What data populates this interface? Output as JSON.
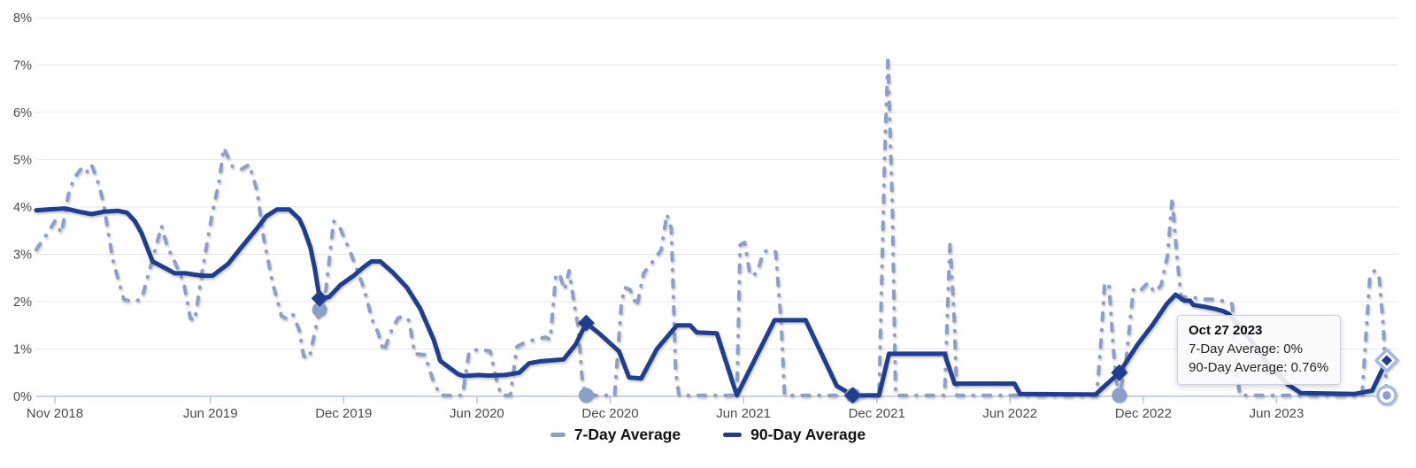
{
  "chart_data": {
    "type": "line",
    "title": "",
    "x_unit": "months_since_Nov_2018",
    "x_range": [
      -0.9,
      60.5
    ],
    "ylim": [
      0,
      8
    ],
    "grid": true,
    "legend_position": "bottom",
    "y_tick_labels": [
      "0%",
      "1%",
      "2%",
      "3%",
      "4%",
      "5%",
      "6%",
      "7%",
      "8%"
    ],
    "x_ticks": [
      {
        "m": 0,
        "label": "Nov 2018"
      },
      {
        "m": 7,
        "label": "Jun 2019"
      },
      {
        "m": 13,
        "label": "Dec 2019"
      },
      {
        "m": 19,
        "label": "Jun 2020"
      },
      {
        "m": 25,
        "label": "Dec 2020"
      },
      {
        "m": 31,
        "label": "Jun 2021"
      },
      {
        "m": 37,
        "label": "Dec 2021"
      },
      {
        "m": 43,
        "label": "Jun 2022"
      },
      {
        "m": 49,
        "label": "Dec 2022"
      },
      {
        "m": 55,
        "label": "Jun 2023"
      }
    ],
    "series": [
      {
        "name": "7-Day Average",
        "color": "#8C9FC9",
        "line_style": "dashdot",
        "marker": "circle",
        "points": [
          [
            -0.84,
            3.1
          ],
          [
            -0.4,
            3.4
          ],
          [
            0.0,
            3.7
          ],
          [
            0.3,
            3.45
          ],
          [
            0.6,
            4.25
          ],
          [
            0.85,
            4.6
          ],
          [
            1.25,
            4.85
          ],
          [
            1.45,
            4.75
          ],
          [
            1.65,
            4.9
          ],
          [
            2.0,
            4.45
          ],
          [
            2.2,
            4.05
          ],
          [
            2.6,
            2.9
          ],
          [
            3.1,
            2.05
          ],
          [
            3.5,
            2.0
          ],
          [
            3.9,
            2.05
          ],
          [
            4.4,
            2.9
          ],
          [
            4.8,
            3.6
          ],
          [
            5.1,
            3.1
          ],
          [
            5.25,
            3.0
          ],
          [
            5.8,
            2.4
          ],
          [
            6.1,
            1.65
          ],
          [
            6.3,
            1.6
          ],
          [
            6.6,
            2.55
          ],
          [
            6.8,
            3.1
          ],
          [
            7.1,
            3.9
          ],
          [
            7.4,
            4.55
          ],
          [
            7.6,
            5.25
          ],
          [
            8.0,
            4.85
          ],
          [
            8.4,
            4.8
          ],
          [
            8.75,
            4.9
          ],
          [
            9.1,
            4.35
          ],
          [
            9.4,
            3.35
          ],
          [
            9.8,
            2.4
          ],
          [
            10.2,
            1.7
          ],
          [
            10.4,
            1.65
          ],
          [
            10.7,
            1.75
          ],
          [
            11.0,
            1.4
          ],
          [
            11.2,
            0.85
          ],
          [
            11.45,
            0.8
          ],
          [
            11.92,
            1.83
          ],
          [
            12.2,
            2.25
          ],
          [
            12.55,
            3.7
          ],
          [
            12.8,
            3.6
          ],
          [
            13.3,
            3.05
          ],
          [
            13.9,
            2.3
          ],
          [
            14.3,
            1.6
          ],
          [
            14.55,
            1.35
          ],
          [
            14.8,
            0.95
          ],
          [
            15.2,
            1.45
          ],
          [
            15.45,
            1.65
          ],
          [
            15.65,
            1.7
          ],
          [
            15.95,
            1.6
          ],
          [
            16.2,
            0.9
          ],
          [
            16.65,
            0.88
          ],
          [
            17.05,
            0.3
          ],
          [
            17.35,
            0.02
          ],
          [
            18.35,
            0.02
          ],
          [
            18.65,
            0.95
          ],
          [
            19.15,
            1.0
          ],
          [
            19.6,
            0.95
          ],
          [
            19.9,
            0.3
          ],
          [
            20.1,
            0.02
          ],
          [
            20.5,
            0.02
          ],
          [
            20.8,
            1.05
          ],
          [
            21.2,
            1.15
          ],
          [
            21.6,
            1.2
          ],
          [
            22.1,
            1.25
          ],
          [
            22.3,
            1.2
          ],
          [
            22.55,
            2.55
          ],
          [
            22.7,
            2.6
          ],
          [
            22.95,
            2.25
          ],
          [
            23.15,
            2.65
          ],
          [
            23.45,
            1.75
          ],
          [
            23.55,
            1.5
          ],
          [
            23.75,
            0.3
          ],
          [
            23.92,
            0.02
          ],
          [
            25.2,
            0.02
          ],
          [
            25.5,
            1.95
          ],
          [
            25.65,
            2.3
          ],
          [
            25.9,
            2.25
          ],
          [
            26.2,
            1.9
          ],
          [
            26.5,
            2.6
          ],
          [
            27.0,
            2.9
          ],
          [
            27.3,
            3.1
          ],
          [
            27.55,
            3.85
          ],
          [
            27.75,
            3.55
          ],
          [
            27.95,
            0.5
          ],
          [
            28.1,
            0.02
          ],
          [
            30.7,
            0.02
          ],
          [
            30.85,
            3.2
          ],
          [
            31.05,
            3.25
          ],
          [
            31.3,
            2.55
          ],
          [
            31.6,
            2.6
          ],
          [
            31.9,
            3.05
          ],
          [
            32.2,
            3.1
          ],
          [
            32.45,
            3.05
          ],
          [
            32.7,
            1.5
          ],
          [
            32.85,
            0.02
          ],
          [
            37.1,
            0.02
          ],
          [
            37.35,
            5.0
          ],
          [
            37.5,
            7.15
          ],
          [
            37.7,
            4.0
          ],
          [
            37.85,
            0.02
          ],
          [
            40.05,
            0.02
          ],
          [
            40.2,
            2.0
          ],
          [
            40.3,
            3.25
          ],
          [
            40.5,
            1.5
          ],
          [
            40.6,
            0.02
          ],
          [
            46.9,
            0.02
          ],
          [
            47.1,
            1.2
          ],
          [
            47.25,
            2.35
          ],
          [
            47.45,
            2.4
          ],
          [
            47.65,
            1.0
          ],
          [
            47.78,
            0.35
          ],
          [
            47.92,
            0.02
          ],
          [
            48.2,
            0.65
          ],
          [
            48.55,
            2.25
          ],
          [
            48.8,
            2.2
          ],
          [
            49.2,
            2.4
          ],
          [
            49.5,
            2.2
          ],
          [
            49.8,
            2.35
          ],
          [
            50.1,
            3.0
          ],
          [
            50.3,
            4.2
          ],
          [
            50.5,
            3.0
          ],
          [
            50.7,
            2.1
          ],
          [
            51.1,
            2.1
          ],
          [
            51.7,
            2.05
          ],
          [
            52.3,
            2.05
          ],
          [
            52.7,
            2.0
          ],
          [
            53.0,
            1.95
          ],
          [
            53.2,
            0.5
          ],
          [
            53.35,
            0.02
          ],
          [
            58.85,
            0.02
          ],
          [
            59.05,
            1.5
          ],
          [
            59.2,
            2.55
          ],
          [
            59.4,
            2.65
          ],
          [
            59.6,
            2.6
          ],
          [
            59.8,
            1.5
          ],
          [
            59.96,
            0.02
          ]
        ],
        "marker_points": [
          [
            11.92,
            1.83
          ],
          [
            23.92,
            0.02
          ],
          [
            35.92,
            0.02
          ],
          [
            47.92,
            0.02
          ]
        ],
        "highlight_point": [
          59.96,
          0.02
        ],
        "highlight_value_label": "0%"
      },
      {
        "name": "90-Day Average",
        "color": "#1F3E90",
        "line_style": "solid",
        "marker": "diamond",
        "points": [
          [
            -0.84,
            3.93
          ],
          [
            -0.3,
            3.95
          ],
          [
            0.45,
            3.97
          ],
          [
            1.1,
            3.9
          ],
          [
            1.65,
            3.85
          ],
          [
            2.2,
            3.9
          ],
          [
            2.85,
            3.92
          ],
          [
            3.25,
            3.88
          ],
          [
            3.6,
            3.7
          ],
          [
            3.9,
            3.45
          ],
          [
            4.4,
            2.85
          ],
          [
            5.0,
            2.7
          ],
          [
            5.4,
            2.6
          ],
          [
            5.9,
            2.6
          ],
          [
            6.3,
            2.57
          ],
          [
            6.7,
            2.55
          ],
          [
            7.1,
            2.55
          ],
          [
            7.8,
            2.8
          ],
          [
            8.4,
            3.15
          ],
          [
            9.1,
            3.55
          ],
          [
            9.5,
            3.8
          ],
          [
            10.0,
            3.95
          ],
          [
            10.55,
            3.95
          ],
          [
            11.0,
            3.75
          ],
          [
            11.2,
            3.55
          ],
          [
            11.5,
            3.15
          ],
          [
            11.7,
            2.7
          ],
          [
            11.92,
            2.07
          ],
          [
            12.35,
            2.1
          ],
          [
            12.85,
            2.35
          ],
          [
            13.45,
            2.55
          ],
          [
            13.95,
            2.75
          ],
          [
            14.25,
            2.85
          ],
          [
            14.65,
            2.85
          ],
          [
            15.25,
            2.6
          ],
          [
            15.85,
            2.3
          ],
          [
            16.45,
            1.85
          ],
          [
            17.05,
            1.2
          ],
          [
            17.35,
            0.75
          ],
          [
            18.15,
            0.47
          ],
          [
            18.4,
            0.43
          ],
          [
            19.05,
            0.45
          ],
          [
            19.55,
            0.44
          ],
          [
            20.25,
            0.45
          ],
          [
            20.9,
            0.5
          ],
          [
            21.35,
            0.7
          ],
          [
            21.85,
            0.74
          ],
          [
            22.9,
            0.78
          ],
          [
            23.45,
            1.1
          ],
          [
            23.92,
            1.55
          ],
          [
            24.5,
            1.33
          ],
          [
            25.4,
            0.95
          ],
          [
            25.85,
            0.4
          ],
          [
            26.4,
            0.38
          ],
          [
            27.1,
            1.0
          ],
          [
            28.0,
            1.5
          ],
          [
            28.6,
            1.5
          ],
          [
            28.9,
            1.35
          ],
          [
            29.8,
            1.33
          ],
          [
            30.7,
            0.02
          ],
          [
            32.4,
            1.61
          ],
          [
            33.8,
            1.61
          ],
          [
            35.2,
            0.22
          ],
          [
            35.92,
            0.02
          ],
          [
            37.1,
            0.02
          ],
          [
            37.55,
            0.9
          ],
          [
            40.05,
            0.9
          ],
          [
            40.5,
            0.27
          ],
          [
            43.2,
            0.27
          ],
          [
            43.45,
            0.05
          ],
          [
            46.85,
            0.04
          ],
          [
            47.1,
            0.15
          ],
          [
            47.92,
            0.5
          ],
          [
            48.75,
            1.1
          ],
          [
            49.4,
            1.5
          ],
          [
            50.05,
            1.95
          ],
          [
            50.45,
            2.15
          ],
          [
            50.85,
            2.02
          ],
          [
            51.1,
            2.02
          ],
          [
            51.25,
            1.93
          ],
          [
            51.8,
            1.89
          ],
          [
            52.3,
            1.84
          ],
          [
            52.6,
            1.8
          ],
          [
            52.85,
            1.74
          ],
          [
            53.5,
            1.4
          ],
          [
            54.5,
            0.75
          ],
          [
            55.5,
            0.25
          ],
          [
            56.1,
            0.07
          ],
          [
            58.5,
            0.05
          ],
          [
            59.3,
            0.12
          ],
          [
            59.96,
            0.76
          ]
        ],
        "marker_points": [
          [
            11.92,
            2.07
          ],
          [
            23.92,
            1.55
          ],
          [
            35.92,
            0.02
          ],
          [
            47.92,
            0.5
          ]
        ],
        "highlight_point": [
          59.96,
          0.76
        ],
        "highlight_value_label": "0.76%"
      }
    ],
    "highlight_date": "Oct 27 2023"
  },
  "tooltip": {
    "title": "Oct 27 2023",
    "line1": "7-Day Average: 0%",
    "line2": "90-Day Average: 0.76%"
  },
  "legend": {
    "items": [
      "7-Day Average",
      "90-Day Average"
    ]
  },
  "colors": {
    "series_7day": "#8C9FC9",
    "series_90day": "#1F3E90",
    "halo_ring": "#A9B9DB",
    "grid_line": "#e8e8e8",
    "axis_line": "#b5c3e1",
    "tick_label": "#4a4a4a"
  }
}
